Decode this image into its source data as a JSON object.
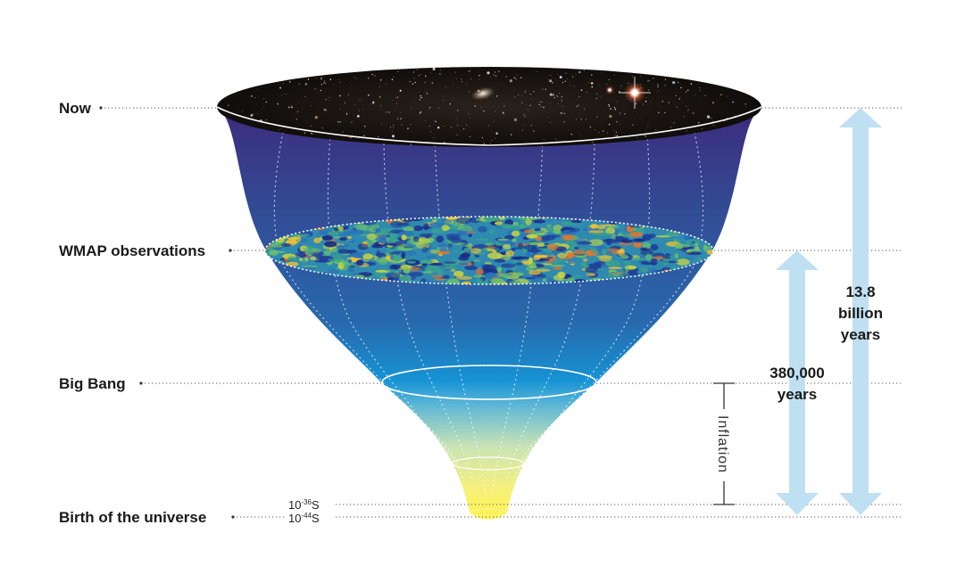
{
  "epochs": {
    "now": "Now",
    "wmap": "WMAP observations",
    "big_bang": "Big Bang",
    "birth": "Birth of the universe"
  },
  "times": {
    "t36_base": "10",
    "t36_exp": "-36",
    "t36_unit": "S",
    "t44_base": "10",
    "t44_exp": "-44",
    "t44_unit": "S"
  },
  "inflation_label": "Inflation",
  "spans": {
    "short": {
      "line1": "380,000",
      "line2": "years"
    },
    "long": {
      "line1": "13.8",
      "line2": "billion",
      "line3": "years"
    }
  },
  "colors": {
    "funnel_top": "#3a2e7e",
    "funnel_mid": "#2e62aa",
    "funnel_cyan": "#1596d4",
    "funnel_yellow": "#fff25a",
    "arrow": "#bfe0f2",
    "space": "#0a0806"
  }
}
